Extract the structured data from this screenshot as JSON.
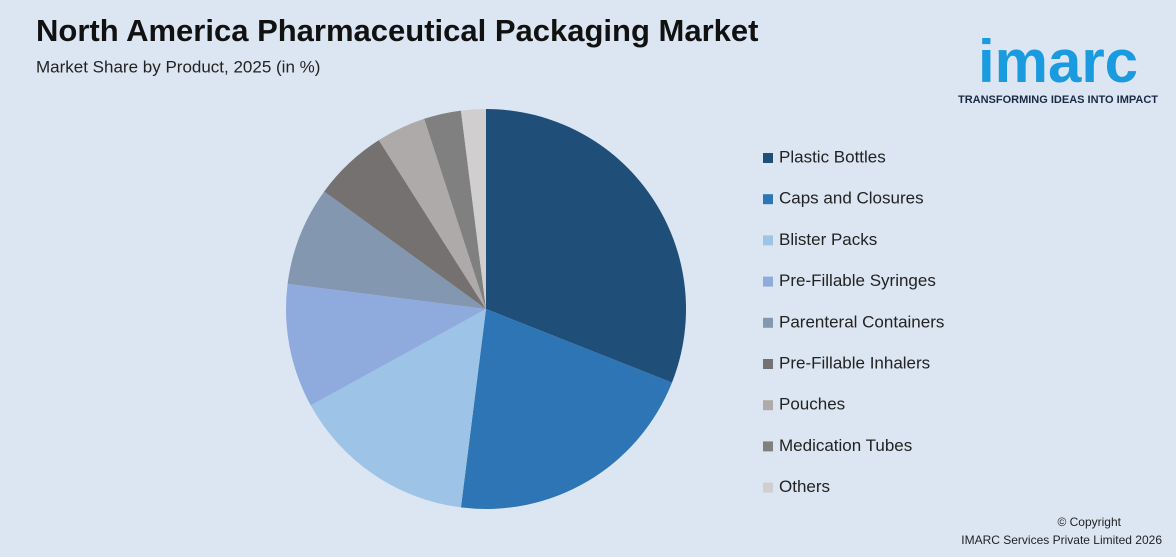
{
  "chart_data": {
    "type": "pie",
    "title": "North America Pharmaceutical Packaging Market",
    "subtitle": "Market Share by Product, 2025 (in %)",
    "categories": [
      "Plastic Bottles",
      "Caps and Closures",
      "Blister Packs",
      "Pre-Fillable Syringes",
      "Parenteral Containers",
      "Pre-Fillable Inhalers",
      "Pouches",
      "Medication Tubes",
      "Others"
    ],
    "values": [
      31,
      21,
      15,
      10,
      8,
      6,
      4,
      3,
      2
    ],
    "colors": [
      "#1f4e79",
      "#2e75b6",
      "#9dc3e6",
      "#8faadc",
      "#8497b0",
      "#767171",
      "#aeaaaa",
      "#808080",
      "#d0cece"
    ],
    "legend": "right"
  },
  "logo": {
    "name": "imarc",
    "tagline": "TRANSFORMING IDEAS INTO IMPACT"
  },
  "footer": {
    "copyright": "© Copyright",
    "owner": "IMARC Services Private Limited 2026"
  }
}
